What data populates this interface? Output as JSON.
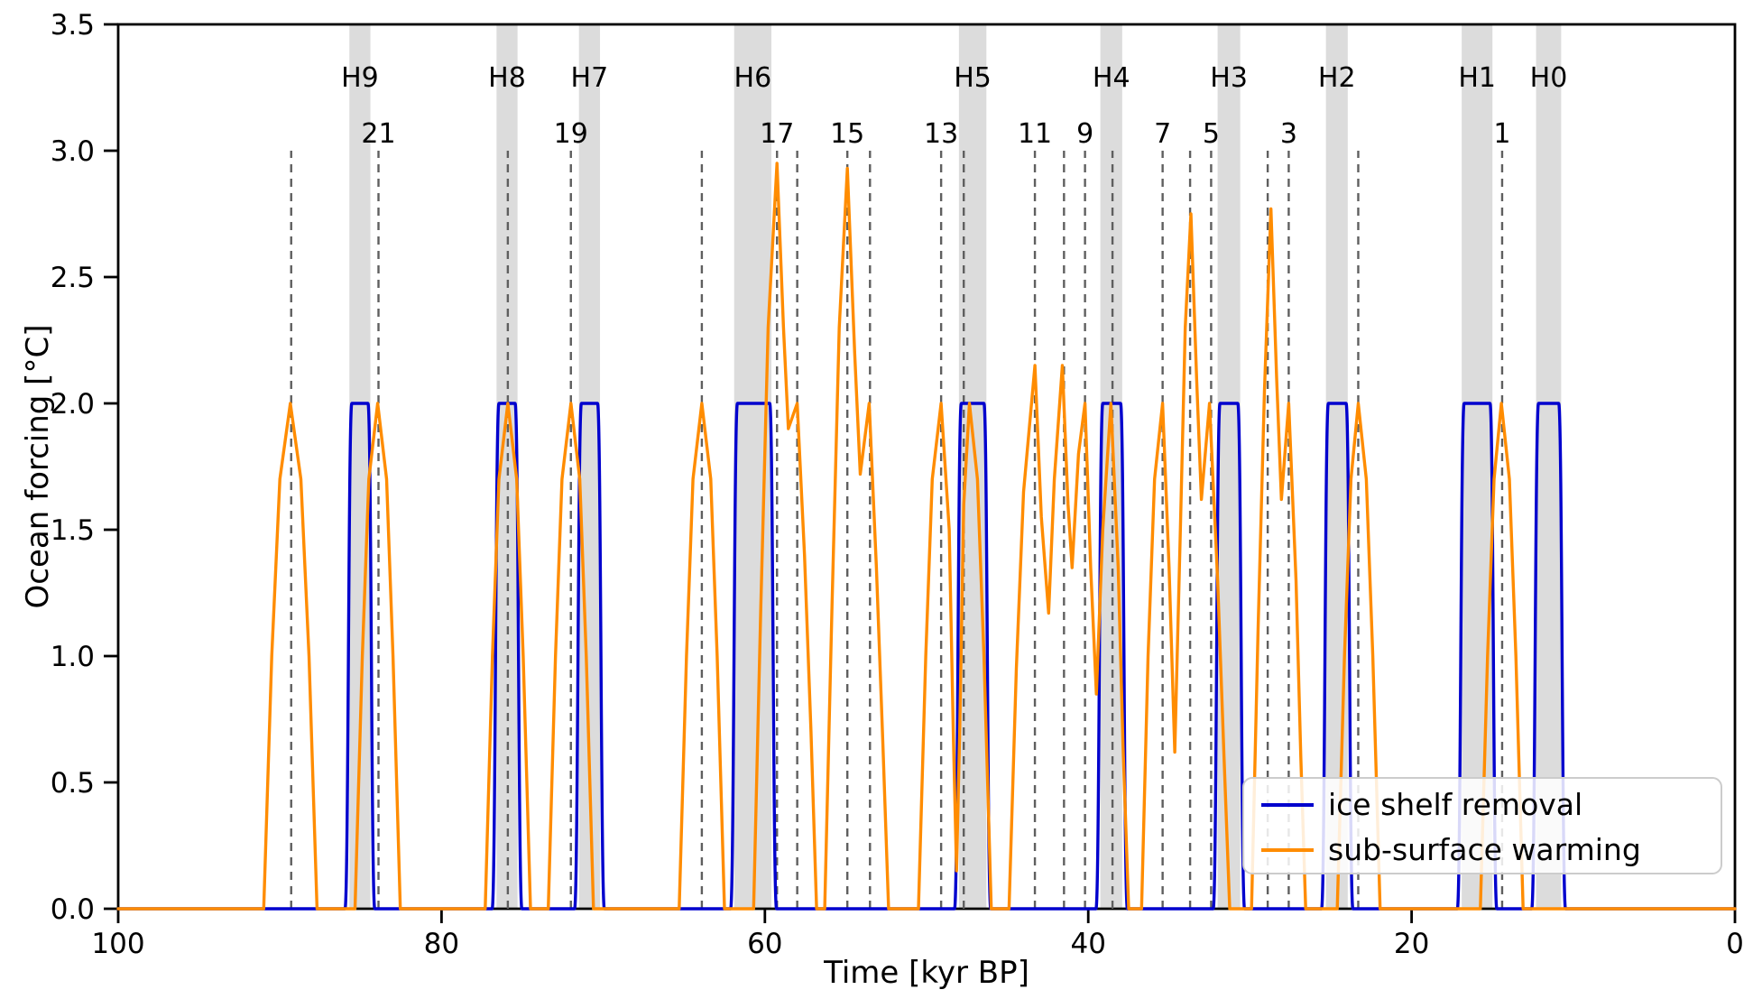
{
  "chart_data": {
    "type": "line",
    "title": "",
    "xlabel": "Time [kyr BP]",
    "ylabel": "Ocean forcing [°C]",
    "xlim": [
      100,
      0
    ],
    "ylim": [
      0,
      3.5
    ],
    "grid": false,
    "x_ticks": [
      100,
      80,
      60,
      40,
      20,
      0
    ],
    "x_tick_labels": [
      "100",
      "80",
      "60",
      "40",
      "20",
      "0"
    ],
    "y_ticks": [
      0,
      0.5,
      1,
      1.5,
      2,
      2.5,
      3,
      3.5
    ],
    "y_tick_labels": [
      "0.0",
      "0.5",
      "1.0",
      "1.5",
      "2.0",
      "2.5",
      "3.0",
      "3.5"
    ],
    "colors": {
      "ice_shelf": "#0000cd",
      "subsurface": "#ff8c00",
      "band": "#dcdcdc",
      "dashed_line": "#5f5f5f",
      "axis": "#000000",
      "legend_border": "#cccccc"
    },
    "heinrich_bands": [
      {
        "label": "H9",
        "from": 85.7,
        "to": 84.4
      },
      {
        "label": "H8",
        "from": 76.6,
        "to": 75.3
      },
      {
        "label": "H7",
        "from": 71.5,
        "to": 70.2
      },
      {
        "label": "H6",
        "from": 61.9,
        "to": 59.6
      },
      {
        "label": "H5",
        "from": 48.0,
        "to": 46.3
      },
      {
        "label": "H4",
        "from": 39.25,
        "to": 37.9
      },
      {
        "label": "H3",
        "from": 32.0,
        "to": 30.6
      },
      {
        "label": "H2",
        "from": 25.3,
        "to": 23.95
      },
      {
        "label": "H1",
        "from": 16.9,
        "to": 15.0
      },
      {
        "label": "H0",
        "from": 12.3,
        "to": 10.75
      }
    ],
    "do_events": [
      {
        "label": "",
        "t": 89.3
      },
      {
        "label": "21",
        "t": 83.9
      },
      {
        "label": "",
        "t": 75.9
      },
      {
        "label": "19",
        "t": 72.0
      },
      {
        "label": "",
        "t": 63.9
      },
      {
        "label": "17",
        "t": 59.25
      },
      {
        "label": "",
        "t": 58.0
      },
      {
        "label": "15",
        "t": 54.9
      },
      {
        "label": "",
        "t": 53.5
      },
      {
        "label": "13",
        "t": 49.1
      },
      {
        "label": "",
        "t": 47.7
      },
      {
        "label": "11",
        "t": 43.3
      },
      {
        "label": "",
        "t": 41.5
      },
      {
        "label": "9",
        "t": 40.2
      },
      {
        "label": "",
        "t": 38.5
      },
      {
        "label": "7",
        "t": 35.4
      },
      {
        "label": "",
        "t": 33.7
      },
      {
        "label": "5",
        "t": 32.4
      },
      {
        "label": "",
        "t": 28.9
      },
      {
        "label": "3",
        "t": 27.6
      },
      {
        "label": "",
        "t": 23.3
      },
      {
        "label": "1",
        "t": 14.4
      }
    ],
    "series": [
      {
        "name": "ice shelf removal",
        "color": "#0000cd",
        "height": 2.0,
        "ramp": 0.42,
        "pulses": [
          [
            85.55,
            84.55
          ],
          [
            76.45,
            75.45
          ],
          [
            71.35,
            70.35
          ],
          [
            61.7,
            59.7
          ],
          [
            47.85,
            46.45
          ],
          [
            39.1,
            38.0
          ],
          [
            31.85,
            30.75
          ],
          [
            25.15,
            24.05
          ],
          [
            16.75,
            15.15
          ],
          [
            12.15,
            10.9
          ]
        ]
      },
      {
        "name": "sub-surface warming",
        "color": "#ff8c00",
        "segments": [
          [
            [
              91.0,
              0
            ],
            [
              90.5,
              1.0
            ],
            [
              90.0,
              1.7
            ],
            [
              89.35,
              2.0
            ],
            [
              88.7,
              1.7
            ],
            [
              88.2,
              1.0
            ],
            [
              87.7,
              0
            ]
          ],
          [
            [
              85.35,
              0
            ],
            [
              84.9,
              1.0
            ],
            [
              84.5,
              1.7
            ],
            [
              83.95,
              2.0
            ],
            [
              83.4,
              1.7
            ],
            [
              83.0,
              1.0
            ],
            [
              82.55,
              0
            ]
          ],
          [
            [
              77.3,
              0
            ],
            [
              76.85,
              1.0
            ],
            [
              76.45,
              1.7
            ],
            [
              75.9,
              2.0
            ],
            [
              75.35,
              1.7
            ],
            [
              74.95,
              1.0
            ],
            [
              74.5,
              0
            ]
          ],
          [
            [
              73.4,
              0
            ],
            [
              72.95,
              1.0
            ],
            [
              72.55,
              1.7
            ],
            [
              72.0,
              2.0
            ],
            [
              71.45,
              1.7
            ],
            [
              71.05,
              1.0
            ],
            [
              70.6,
              0
            ]
          ],
          [
            [
              65.3,
              0
            ],
            [
              64.85,
              1.0
            ],
            [
              64.45,
              1.7
            ],
            [
              63.9,
              2.0
            ],
            [
              63.35,
              1.7
            ],
            [
              62.95,
              1.0
            ],
            [
              62.5,
              0
            ]
          ],
          [
            [
              60.7,
              0
            ],
            [
              60.25,
              1.2
            ],
            [
              59.8,
              2.3
            ],
            [
              59.25,
              2.95
            ],
            [
              58.85,
              2.3
            ],
            [
              58.55,
              1.9
            ],
            [
              58.0,
              2.0
            ],
            [
              57.55,
              1.4
            ],
            [
              57.15,
              0.7
            ],
            [
              56.8,
              0
            ]
          ],
          [
            [
              56.3,
              0
            ],
            [
              55.85,
              1.2
            ],
            [
              55.4,
              2.3
            ],
            [
              54.9,
              2.93
            ],
            [
              54.45,
              2.2
            ],
            [
              54.1,
              1.72
            ],
            [
              53.55,
              2.0
            ],
            [
              53.1,
              1.35
            ],
            [
              52.7,
              0.65
            ],
            [
              52.35,
              0
            ]
          ],
          [
            [
              50.5,
              0
            ],
            [
              50.05,
              1.0
            ],
            [
              49.65,
              1.7
            ],
            [
              49.1,
              2.0
            ],
            [
              48.6,
              1.5
            ],
            [
              48.35,
              0.7
            ],
            [
              48.15,
              0.15
            ],
            [
              47.95,
              0.7
            ],
            [
              47.7,
              1.6
            ],
            [
              47.35,
              2.0
            ],
            [
              46.85,
              1.7
            ],
            [
              46.45,
              1.0
            ],
            [
              46.0,
              0
            ]
          ],
          [
            [
              44.9,
              0
            ],
            [
              44.45,
              0.95
            ],
            [
              44.0,
              1.65
            ],
            [
              43.3,
              2.15
            ],
            [
              42.9,
              1.55
            ],
            [
              42.45,
              1.17
            ],
            [
              42.1,
              1.7
            ],
            [
              41.6,
              2.15
            ],
            [
              41.25,
              1.6
            ],
            [
              41.0,
              1.35
            ],
            [
              40.6,
              1.8
            ],
            [
              40.2,
              2.0
            ],
            [
              39.85,
              1.35
            ],
            [
              39.5,
              0.85
            ],
            [
              39.1,
              1.5
            ],
            [
              38.6,
              2.0
            ],
            [
              38.15,
              1.35
            ],
            [
              37.85,
              0.65
            ],
            [
              37.5,
              0
            ]
          ],
          [
            [
              36.7,
              0
            ],
            [
              36.3,
              1.0
            ],
            [
              35.9,
              1.7
            ],
            [
              35.4,
              2.0
            ],
            [
              35.0,
              1.35
            ],
            [
              34.65,
              0.62
            ],
            [
              34.3,
              1.5
            ],
            [
              34.0,
              2.3
            ],
            [
              33.65,
              2.75
            ],
            [
              33.3,
              2.1
            ],
            [
              33.0,
              1.62
            ],
            [
              32.5,
              2.0
            ],
            [
              32.0,
              1.3
            ],
            [
              31.6,
              0.6
            ],
            [
              31.25,
              0
            ]
          ],
          [
            [
              29.9,
              0
            ],
            [
              29.5,
              1.1
            ],
            [
              29.1,
              2.05
            ],
            [
              28.7,
              2.77
            ],
            [
              28.35,
              2.1
            ],
            [
              28.05,
              1.62
            ],
            [
              27.6,
              2.0
            ],
            [
              27.15,
              1.3
            ],
            [
              26.85,
              0.6
            ],
            [
              26.55,
              0
            ]
          ],
          [
            [
              24.6,
              0
            ],
            [
              24.15,
              1.0
            ],
            [
              23.75,
              1.7
            ],
            [
              23.3,
              2.0
            ],
            [
              22.8,
              1.7
            ],
            [
              22.4,
              1.0
            ],
            [
              21.95,
              0
            ]
          ],
          [
            [
              15.75,
              0
            ],
            [
              15.3,
              1.0
            ],
            [
              14.9,
              1.7
            ],
            [
              14.45,
              2.0
            ],
            [
              13.95,
              1.7
            ],
            [
              13.55,
              1.0
            ],
            [
              13.1,
              0
            ]
          ]
        ]
      }
    ],
    "legend": {
      "position": "lower right",
      "entries": [
        "ice shelf removal",
        "sub-surface warming"
      ]
    }
  }
}
